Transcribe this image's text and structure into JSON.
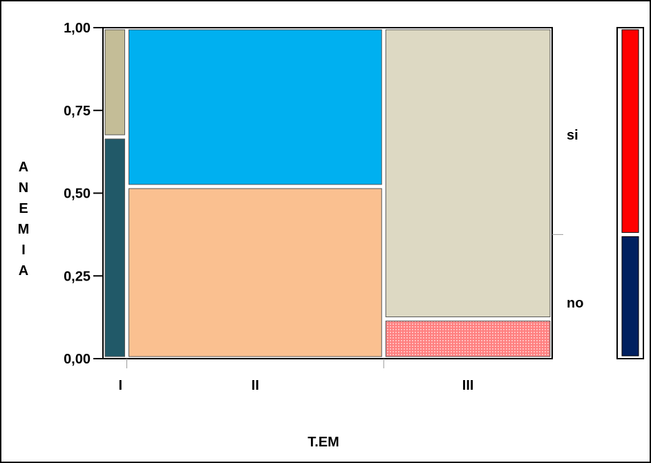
{
  "chart_data": {
    "type": "mosaic",
    "title": "",
    "xlabel": "T.EM",
    "ylabel": "ANEMIA",
    "ylim": [
      0,
      1
    ],
    "y_ticks": [
      {
        "value": 0.0,
        "label": "0,00"
      },
      {
        "value": 0.25,
        "label": "0,25"
      },
      {
        "value": 0.5,
        "label": "0,50"
      },
      {
        "value": 0.75,
        "label": "0,75"
      },
      {
        "value": 1.0,
        "label": "1,00"
      }
    ],
    "categories": [
      "I",
      "II",
      "III"
    ],
    "category_widths": [
      0.053,
      0.572,
      0.375
    ],
    "levels": [
      "no",
      "si"
    ],
    "proportions": [
      {
        "category": "I",
        "no": 0.67,
        "si": 0.33
      },
      {
        "category": "II",
        "no": 0.52,
        "si": 0.48
      },
      {
        "category": "III",
        "no": 0.12,
        "si": 0.88
      }
    ],
    "overall": {
      "no": 0.375,
      "si": 0.625
    },
    "colors": {
      "I": {
        "no": "#215968",
        "si": "#c4bd97"
      },
      "II": {
        "no": "#fac090",
        "si": "#00b0f0"
      },
      "III": {
        "no": "#ff8080",
        "si": "#ddd9c3"
      },
      "overall": {
        "no": "#002060",
        "si": "#ff0000"
      }
    }
  }
}
